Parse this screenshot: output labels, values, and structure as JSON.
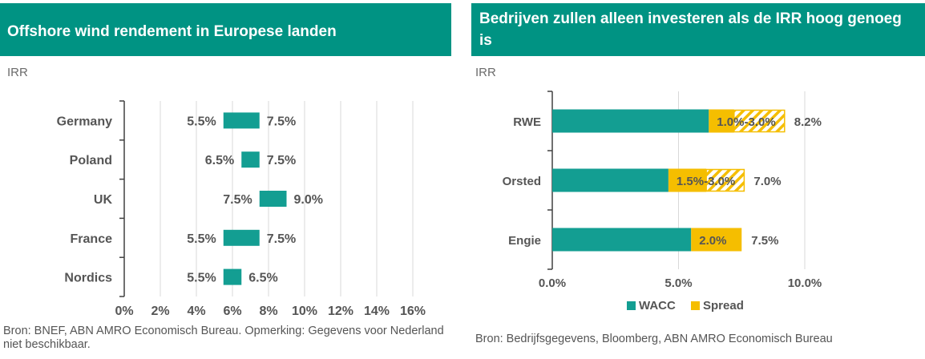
{
  "chart_data": [
    {
      "type": "bar",
      "orientation": "horizontal",
      "subtype": "floating-range",
      "title": "Offshore wind rendement in Europese landen",
      "ylabel": "IRR",
      "categories": [
        "Germany",
        "Poland",
        "UK",
        "France",
        "Nordics"
      ],
      "series": [
        {
          "low": [
            5.5,
            6.5,
            7.5,
            5.5,
            5.5
          ],
          "high": [
            7.5,
            7.5,
            9.0,
            7.5,
            6.5
          ]
        }
      ],
      "low_labels": [
        "5.5%",
        "6.5%",
        "7.5%",
        "5.5%",
        "5.5%"
      ],
      "high_labels": [
        "7.5%",
        "7.5%",
        "9.0%",
        "7.5%",
        "6.5%"
      ],
      "xlim": [
        0,
        16
      ],
      "xticks": [
        "0%",
        "2%",
        "4%",
        "6%",
        "8%",
        "10%",
        "12%",
        "14%",
        "16%"
      ],
      "grid": true,
      "colors": {
        "bar": "#139e92",
        "grid": "#d9d9d9",
        "text": "#555555"
      },
      "source": "Bron: BNEF, ABN AMRO Economisch Bureau. Opmerking: Gegevens voor Nederland niet beschikbaar."
    },
    {
      "type": "bar",
      "orientation": "horizontal",
      "subtype": "stacked",
      "title": "Bedrijven zullen alleen investeren als de IRR hoog genoeg is",
      "ylabel": "IRR",
      "categories": [
        "RWE",
        "Orsted",
        "Engie"
      ],
      "series": [
        {
          "name": "WACC",
          "values": [
            6.2,
            4.6,
            5.5
          ]
        },
        {
          "name": "Spread",
          "values": [
            1.0,
            1.5,
            2.0
          ]
        },
        {
          "range_extension": [
            3.0,
            3.0,
            0
          ]
        }
      ],
      "inside_labels": [
        "1.0%-3.0%",
        "1.5%-3.0%",
        "2.0%"
      ],
      "total_labels": [
        "8.2%",
        "7.0%",
        "7.5%"
      ],
      "xlim": [
        0,
        10.3
      ],
      "xticks": [
        "0.0%",
        "5.0%",
        "10.0%"
      ],
      "xtick_values": [
        0,
        5,
        10
      ],
      "grid": true,
      "legend": "bottom",
      "colors": {
        "wacc": "#139e92",
        "spread": "#f5be00",
        "grid": "#d9d9d9",
        "text": "#555555"
      },
      "source": "Bron: Bedrijfsgegevens, Bloomberg, ABN AMRO Economisch Bureau"
    }
  ]
}
